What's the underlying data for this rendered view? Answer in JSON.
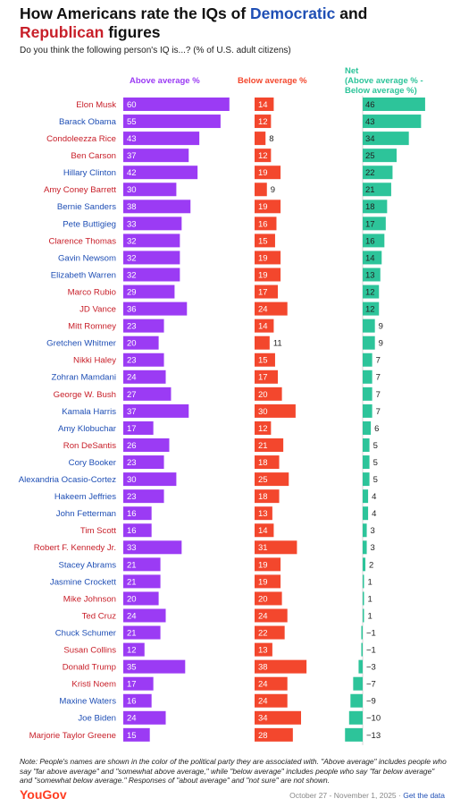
{
  "title": {
    "prefix": "How Americans rate the IQs of ",
    "dem_word": "Democratic",
    "middle": " and",
    "rep_word": "Republican",
    "suffix": " figures"
  },
  "subtitle": "Do you think the following person's IQ is...? (% of U.S. adult citizens)",
  "note": "Note: People's names are shown in the color of the political party they are associated with. \"Above average\" includes people who say \"far above average\" and \"somewhat above average,\" while \"below average\" includes people who say \"far below average\" and \"somewhat below average.\" Responses of \"about average\" and \"not sure\" are not shown.",
  "brand": "YouGov",
  "footer": {
    "dates": "October 27 - November 1, 2025 · ",
    "link": "Get the data"
  },
  "colors": {
    "above": "#9b3bf4",
    "below": "#f3472d",
    "net": "#2dc49a",
    "democrat": "#1f4fb5",
    "republican": "#c8202a"
  },
  "chart_data": {
    "type": "bar",
    "column_headers": {
      "above": "Above average %",
      "below": "Below average %",
      "net": "Net\n(Above average % -\nBelow average %)"
    },
    "categories": [
      "Elon Musk",
      "Barack Obama",
      "Condoleezza Rice",
      "Ben Carson",
      "Hillary Clinton",
      "Amy Coney Barrett",
      "Bernie Sanders",
      "Pete Buttigieg",
      "Clarence Thomas",
      "Gavin Newsom",
      "Elizabeth Warren",
      "Marco Rubio",
      "JD Vance",
      "Mitt Romney",
      "Gretchen Whitmer",
      "Nikki Haley",
      "Zohran Mamdani",
      "George W. Bush",
      "Kamala Harris",
      "Amy Klobuchar",
      "Ron DeSantis",
      "Cory Booker",
      "Alexandria Ocasio-Cortez",
      "Hakeem Jeffries",
      "John Fetterman",
      "Tim Scott",
      "Robert F. Kennedy Jr.",
      "Stacey Abrams",
      "Jasmine Crockett",
      "Mike Johnson",
      "Ted Cruz",
      "Chuck Schumer",
      "Susan Collins",
      "Donald Trump",
      "Kristi Noem",
      "Maxine Waters",
      "Joe Biden",
      "Marjorie Taylor Greene"
    ],
    "party": [
      "R",
      "D",
      "R",
      "R",
      "D",
      "R",
      "D",
      "D",
      "R",
      "D",
      "D",
      "R",
      "R",
      "R",
      "D",
      "R",
      "D",
      "R",
      "D",
      "D",
      "R",
      "D",
      "D",
      "D",
      "D",
      "R",
      "R",
      "D",
      "D",
      "R",
      "R",
      "D",
      "R",
      "R",
      "R",
      "D",
      "D",
      "R"
    ],
    "series": [
      {
        "name": "Above average %",
        "values": [
          60,
          55,
          43,
          37,
          42,
          30,
          38,
          33,
          32,
          32,
          32,
          29,
          36,
          23,
          20,
          23,
          24,
          27,
          37,
          17,
          26,
          23,
          30,
          23,
          16,
          16,
          33,
          21,
          21,
          20,
          24,
          21,
          12,
          35,
          17,
          16,
          24,
          15
        ]
      },
      {
        "name": "Below average %",
        "values": [
          14,
          12,
          8,
          12,
          19,
          9,
          19,
          16,
          15,
          19,
          19,
          17,
          24,
          14,
          11,
          15,
          17,
          20,
          30,
          12,
          21,
          18,
          25,
          18,
          13,
          14,
          31,
          19,
          19,
          20,
          24,
          22,
          13,
          38,
          24,
          24,
          34,
          28
        ]
      },
      {
        "name": "Net (Above average % - Below average %)",
        "values": [
          46,
          43,
          34,
          25,
          22,
          21,
          18,
          17,
          16,
          14,
          13,
          12,
          12,
          9,
          9,
          7,
          7,
          7,
          7,
          6,
          5,
          5,
          5,
          4,
          4,
          3,
          3,
          2,
          1,
          1,
          1,
          -1,
          -1,
          -3,
          -7,
          -9,
          -10,
          -13
        ]
      }
    ],
    "net_labels": [
      "46",
      "43",
      "34",
      "25",
      "22",
      "21",
      "18",
      "17",
      "16",
      "14",
      "13",
      "12",
      "12",
      "9",
      "9",
      "7",
      "7",
      "7",
      "7",
      "6",
      "5",
      "5",
      "5",
      "4",
      "4",
      "3",
      "3",
      "2",
      "1",
      "1",
      "1",
      "−1",
      "−1",
      "−3",
      "−7",
      "−9",
      "−10",
      "−13"
    ]
  }
}
